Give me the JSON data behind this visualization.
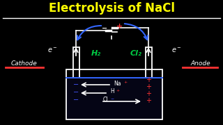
{
  "title": "Electrolysis of NaCl",
  "title_color": "#FFFF00",
  "bg_color": "#000000",
  "cathode_label": "Cathode",
  "anode_label": "Anode",
  "h2_label": "H₂",
  "cl2_label": "Cl₂",
  "white": "#FFFFFF",
  "red": "#FF3333",
  "green": "#00CC44",
  "blue_wire": "#3366FF",
  "blue_ion": "#4455FF"
}
